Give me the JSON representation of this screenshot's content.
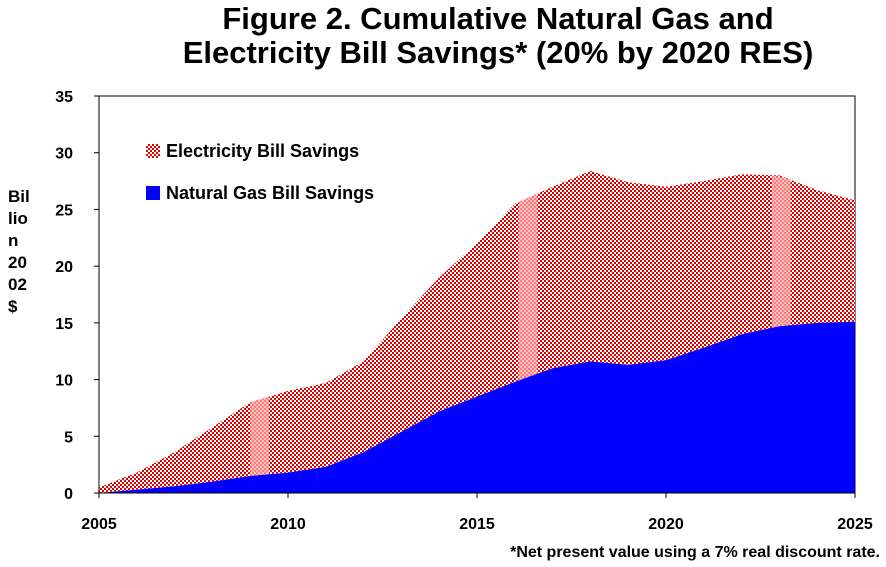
{
  "chart_data": {
    "type": "area",
    "title_line1": "Figure 2. Cumulative Natural Gas and",
    "title_line2": "Electricity Bill Savings* (20% by 2020 RES)",
    "ylabel_lines": [
      "Bil",
      "lio",
      "n",
      "20",
      "02",
      "$"
    ],
    "xlabel": "",
    "footnote": "*Net present value using a 7% real discount rate.",
    "xlim": [
      2005,
      2025
    ],
    "ylim": [
      0,
      35
    ],
    "x_ticks": [
      2005,
      2010,
      2015,
      2020,
      2025
    ],
    "y_ticks": [
      0,
      5,
      10,
      15,
      20,
      25,
      30,
      35
    ],
    "stacked": true,
    "legend_position": "top-left",
    "grid": false,
    "x": [
      2005,
      2006,
      2007,
      2008,
      2009,
      2010,
      2011,
      2012,
      2013,
      2014,
      2015,
      2016,
      2017,
      2018,
      2019,
      2020,
      2021,
      2022,
      2023,
      2024,
      2025
    ],
    "series": [
      {
        "name": "Natural Gas Bill Savings",
        "color": "#0000ff",
        "pattern": "solid",
        "values": [
          0,
          0.3,
          0.6,
          1.0,
          1.5,
          1.8,
          2.3,
          3.6,
          5.4,
          7.2,
          8.5,
          9.8,
          11.0,
          11.6,
          11.3,
          11.7,
          12.8,
          14.0,
          14.7,
          15.0,
          15.1
        ]
      },
      {
        "name": "Electricity Bill Savings",
        "color": "#e00000",
        "pattern": "checkered",
        "values": [
          0.5,
          1.5,
          3.0,
          4.8,
          6.5,
          7.2,
          7.4,
          8.0,
          10.0,
          11.8,
          13.5,
          15.7,
          16.0,
          16.8,
          16.1,
          15.3,
          14.7,
          14.1,
          13.3,
          11.7,
          10.7
        ]
      }
    ],
    "highlight_bands": [
      {
        "from": 2009.0,
        "to": 2009.5
      },
      {
        "from": 2016.1,
        "to": 2016.6
      },
      {
        "from": 2022.8,
        "to": 2023.3
      }
    ],
    "legend": [
      {
        "label": "Electricity Bill Savings",
        "pattern": "checkered",
        "color": "#e00000"
      },
      {
        "label": "Natural Gas Bill Savings",
        "pattern": "solid",
        "color": "#0000ff"
      }
    ]
  }
}
